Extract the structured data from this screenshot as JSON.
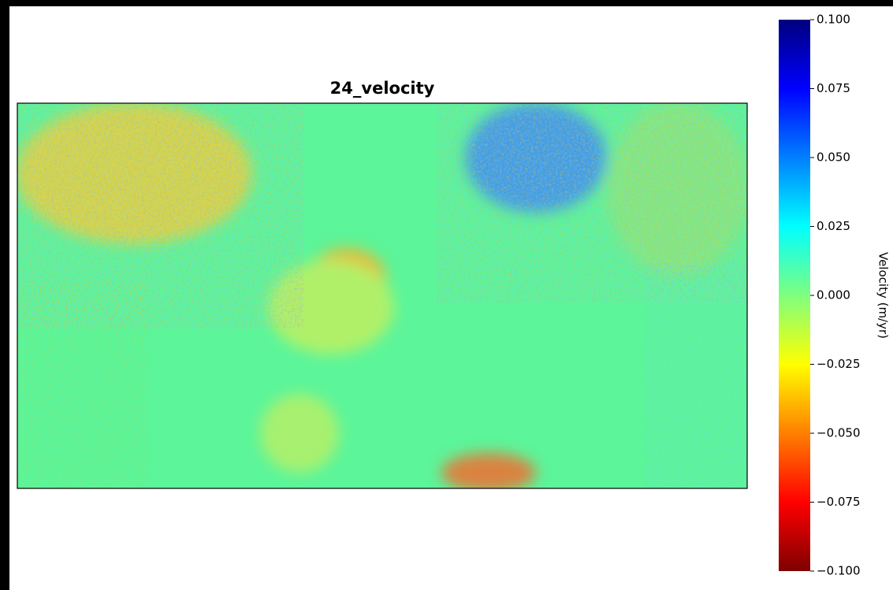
{
  "chart_data": {
    "type": "heatmap",
    "title": "24_velocity",
    "colormap": "jet_r",
    "colorbar_label": "Velocity (m/yr)",
    "clim": [
      -0.1,
      0.1
    ],
    "colorbar_ticks": [
      {
        "value": 0.1,
        "label": "0.100"
      },
      {
        "value": 0.075,
        "label": "0.075"
      },
      {
        "value": 0.05,
        "label": "0.050"
      },
      {
        "value": 0.025,
        "label": "0.025"
      },
      {
        "value": 0,
        "label": "0.000"
      },
      {
        "value": -0.025,
        "label": "−0.025"
      },
      {
        "value": -0.05,
        "label": "−0.050"
      },
      {
        "value": -0.075,
        "label": "−0.075"
      },
      {
        "value": -0.1,
        "label": "−0.100"
      }
    ]
  }
}
